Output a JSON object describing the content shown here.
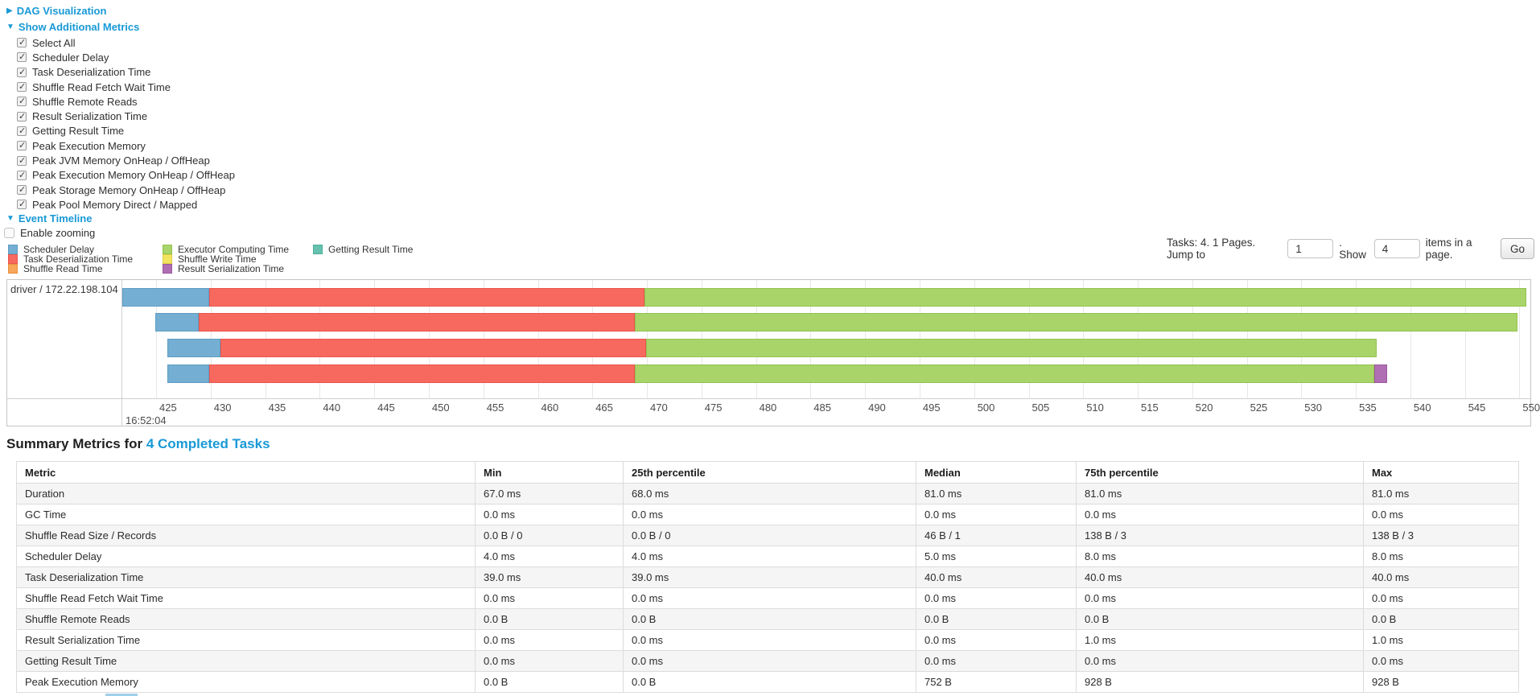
{
  "colors": {
    "link_blue": "#1899d6",
    "chart_border": "#c5c5c5",
    "gridline": "#e7e7e7",
    "table_stripe": "#f5f5f5"
  },
  "toggles": {
    "dag": "DAG Visualization",
    "metrics": "Show Additional Metrics",
    "event_timeline": "Event Timeline",
    "enable_zooming": "Enable zooming"
  },
  "metric_options": [
    "Select All",
    "Scheduler Delay",
    "Task Deserialization Time",
    "Shuffle Read Fetch Wait Time",
    "Shuffle Remote Reads",
    "Result Serialization Time",
    "Getting Result Time",
    "Peak Execution Memory",
    "Peak JVM Memory OnHeap / OffHeap",
    "Peak Execution Memory OnHeap / OffHeap",
    "Peak Storage Memory OnHeap / OffHeap",
    "Peak Pool Memory Direct / Mapped"
  ],
  "pagination": {
    "prefix": "Tasks: 4. 1 Pages. Jump to",
    "jump_value": "1",
    "mid": ". Show",
    "show_value": "4",
    "suffix": "items in a page.",
    "go_label": "Go"
  },
  "chart_data": {
    "type": "timeline-gantt",
    "group_label": "driver / 172.22.198.104",
    "time_of_day_label": "16:52:04",
    "x_window": [
      421.9,
      551.0
    ],
    "tick_start": 425,
    "tick_end": 550,
    "tick_step": 5,
    "legend_columns": [
      [
        {
          "name": "scheduler-delay",
          "label": "Scheduler Delay",
          "fill": "#74afd3",
          "border": "#5e9cc4"
        },
        {
          "name": "task-deserialization-time",
          "label": "Task Deserialization Time",
          "fill": "#f7695f",
          "border": "#e9564c"
        },
        {
          "name": "shuffle-read-time",
          "label": "Shuffle Read Time",
          "fill": "#f8a65a",
          "border": "#e98f3e"
        }
      ],
      [
        {
          "name": "executor-computing-time",
          "label": "Executor Computing Time",
          "fill": "#a9d46a",
          "border": "#93c24f"
        },
        {
          "name": "shuffle-write-time",
          "label": "Shuffle Write Time",
          "fill": "#f2e45f",
          "border": "#decf45"
        },
        {
          "name": "result-serialization-time",
          "label": "Result Serialization Time",
          "fill": "#b06fb2",
          "border": "#9a58a0"
        }
      ],
      [
        {
          "name": "getting-result-time",
          "label": "Getting Result Time",
          "fill": "#66c2af",
          "border": "#4fae99"
        }
      ]
    ],
    "tasks": [
      {
        "row": 0,
        "segments": [
          {
            "name": "scheduler-delay",
            "start": 421.9,
            "end": 429.9
          },
          {
            "name": "task-deserialization-time",
            "start": 429.9,
            "end": 469.8
          },
          {
            "name": "executor-computing-time",
            "start": 469.8,
            "end": 550.6
          }
        ]
      },
      {
        "row": 1,
        "segments": [
          {
            "name": "scheduler-delay",
            "start": 424.9,
            "end": 428.9
          },
          {
            "name": "task-deserialization-time",
            "start": 428.9,
            "end": 468.9
          },
          {
            "name": "executor-computing-time",
            "start": 468.9,
            "end": 549.8
          }
        ]
      },
      {
        "row": 2,
        "segments": [
          {
            "name": "scheduler-delay",
            "start": 426.0,
            "end": 430.9
          },
          {
            "name": "task-deserialization-time",
            "start": 430.9,
            "end": 469.9
          },
          {
            "name": "executor-computing-time",
            "start": 469.9,
            "end": 536.9
          }
        ]
      },
      {
        "row": 3,
        "segments": [
          {
            "name": "scheduler-delay",
            "start": 426.0,
            "end": 429.9
          },
          {
            "name": "task-deserialization-time",
            "start": 429.9,
            "end": 468.9
          },
          {
            "name": "executor-computing-time",
            "start": 468.9,
            "end": 536.7
          },
          {
            "name": "result-serialization-time",
            "start": 536.7,
            "end": 537.9
          }
        ]
      }
    ]
  },
  "summary": {
    "title_prefix": "Summary Metrics for ",
    "title_link": "4 Completed Tasks",
    "headers": [
      "Metric",
      "Min",
      "25th percentile",
      "Median",
      "75th percentile",
      "Max"
    ],
    "rows": [
      [
        "Duration",
        "67.0 ms",
        "68.0 ms",
        "81.0 ms",
        "81.0 ms",
        "81.0 ms"
      ],
      [
        "GC Time",
        "0.0 ms",
        "0.0 ms",
        "0.0 ms",
        "0.0 ms",
        "0.0 ms"
      ],
      [
        "Shuffle Read Size / Records",
        "0.0 B / 0",
        "0.0 B / 0",
        "46 B / 1",
        "138 B / 3",
        "138 B / 3"
      ],
      [
        "Scheduler Delay",
        "4.0 ms",
        "4.0 ms",
        "5.0 ms",
        "8.0 ms",
        "8.0 ms"
      ],
      [
        "Task Deserialization Time",
        "39.0 ms",
        "39.0 ms",
        "40.0 ms",
        "40.0 ms",
        "40.0 ms"
      ],
      [
        "Shuffle Read Fetch Wait Time",
        "0.0 ms",
        "0.0 ms",
        "0.0 ms",
        "0.0 ms",
        "0.0 ms"
      ],
      [
        "Shuffle Remote Reads",
        "0.0 B",
        "0.0 B",
        "0.0 B",
        "0.0 B",
        "0.0 B"
      ],
      [
        "Result Serialization Time",
        "0.0 ms",
        "0.0 ms",
        "0.0 ms",
        "1.0 ms",
        "1.0 ms"
      ],
      [
        "Getting Result Time",
        "0.0 ms",
        "0.0 ms",
        "0.0 ms",
        "0.0 ms",
        "0.0 ms"
      ],
      [
        "Peak Execution Memory",
        "0.0 B",
        "0.0 B",
        "752 B",
        "928 B",
        "928 B"
      ]
    ]
  }
}
